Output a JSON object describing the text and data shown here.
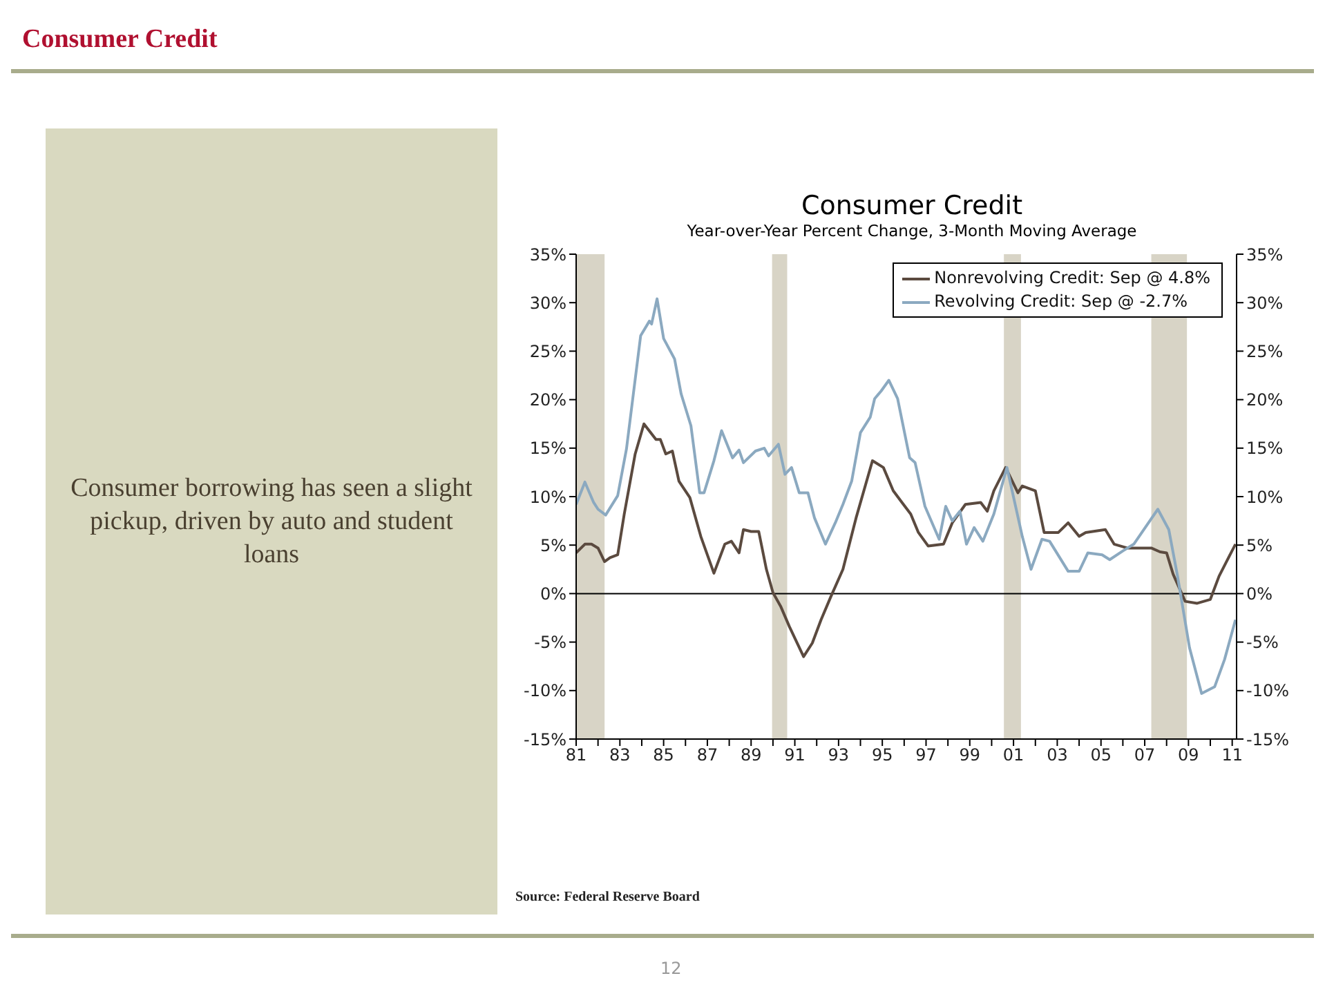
{
  "chart_data": {
    "type": "line",
    "title": "Consumer Credit",
    "subtitle": "Year-over-Year Percent Change, 3-Month Moving Average",
    "annotations": [
      "Consumer Credit",
      "Consumer borrowing has seen a slight pickup, driven by auto and student loans",
      "Source: Federal Reserve Board",
      "12"
    ],
    "series": [
      {
        "name": "Nonrevolving Credit: Sep @ 4.8%",
        "color": "#5b4a3f",
        "x": [
          1981.0,
          1981.4,
          1981.7,
          1982.0,
          1982.3,
          1982.55,
          1982.9,
          1983.2,
          1983.7,
          1984.1,
          1984.65,
          1984.85,
          1985.1,
          1985.4,
          1985.7,
          1986.2,
          1986.7,
          1987.3,
          1987.8,
          1988.1,
          1988.45,
          1988.65,
          1989.0,
          1989.35,
          1989.7,
          1990.0,
          1990.35,
          1990.75,
          1991.4,
          1991.8,
          1992.2,
          1992.65,
          1993.2,
          1993.8,
          1994.55,
          1995.05,
          1995.5,
          1995.9,
          1996.3,
          1996.65,
          1997.1,
          1997.8,
          1998.2,
          1998.8,
          1999.5,
          1999.8,
          2000.1,
          2000.64,
          2001.2,
          2001.4,
          2002.0,
          2002.4,
          2003.05,
          2003.5,
          2004.0,
          2004.3,
          2005.2,
          2005.6,
          2006.2,
          2007.3,
          2007.7,
          2008.0,
          2008.3,
          2008.85,
          2009.4,
          2010.0,
          2010.4,
          2011.15
        ],
        "values": [
          4.2,
          5.1,
          5.1,
          4.7,
          3.3,
          3.7,
          4.0,
          8.2,
          14.4,
          17.5,
          15.9,
          15.9,
          14.4,
          14.7,
          11.6,
          9.9,
          5.9,
          2.1,
          5.1,
          5.4,
          4.2,
          6.6,
          6.4,
          6.4,
          2.5,
          0.1,
          -1.3,
          -3.4,
          -6.5,
          -5.1,
          -2.7,
          -0.3,
          2.5,
          7.8,
          13.7,
          13.0,
          10.6,
          9.4,
          8.2,
          6.3,
          4.9,
          5.1,
          7.3,
          9.2,
          9.4,
          8.5,
          10.6,
          13.0,
          10.4,
          11.1,
          10.6,
          6.3,
          6.3,
          7.3,
          5.9,
          6.3,
          6.6,
          5.1,
          4.7,
          4.7,
          4.3,
          4.2,
          2.0,
          -0.8,
          -1.0,
          -0.6,
          1.8,
          5.1
        ]
      },
      {
        "name": "Revolving Credit: Sep @ -2.7%",
        "color": "#8ba9c0",
        "x": [
          1981.0,
          1981.4,
          1981.8,
          1982.0,
          1982.35,
          1982.9,
          1983.3,
          1983.95,
          1984.35,
          1984.45,
          1984.7,
          1985.0,
          1985.5,
          1985.8,
          1986.25,
          1986.65,
          1986.85,
          1987.3,
          1987.65,
          1988.15,
          1988.45,
          1988.65,
          1989.2,
          1989.6,
          1989.8,
          1990.25,
          1990.55,
          1990.85,
          1991.2,
          1991.6,
          1991.9,
          1992.4,
          1992.85,
          1993.2,
          1993.6,
          1994.0,
          1994.45,
          1994.65,
          1994.95,
          1995.3,
          1995.7,
          1996.25,
          1996.5,
          1996.95,
          1997.6,
          1997.9,
          1998.2,
          1998.55,
          1998.85,
          1999.2,
          1999.6,
          2000.1,
          2000.7,
          2001.4,
          2001.8,
          2002.3,
          2002.65,
          2003.5,
          2004.0,
          2004.4,
          2005.05,
          2005.4,
          2006.0,
          2006.5,
          2007.6,
          2008.1,
          2008.5,
          2009.05,
          2009.6,
          2010.2,
          2010.65,
          2011.15
        ],
        "values": [
          9.2,
          11.5,
          9.4,
          8.7,
          8.1,
          10.1,
          14.9,
          26.6,
          28.1,
          27.8,
          30.4,
          26.3,
          24.2,
          20.6,
          17.3,
          10.4,
          10.4,
          13.7,
          16.8,
          14.0,
          14.8,
          13.5,
          14.7,
          15.0,
          14.2,
          15.4,
          12.3,
          13.0,
          10.4,
          10.4,
          7.8,
          5.1,
          7.3,
          9.2,
          11.6,
          16.6,
          18.2,
          20.1,
          20.9,
          22.0,
          20.1,
          14.0,
          13.5,
          9.0,
          5.6,
          9.0,
          7.5,
          8.5,
          5.1,
          6.8,
          5.4,
          8.2,
          13.0,
          5.9,
          2.5,
          5.6,
          5.4,
          2.3,
          2.3,
          4.2,
          4.0,
          3.5,
          4.4,
          5.1,
          8.7,
          6.6,
          1.8,
          -5.6,
          -10.3,
          -9.6,
          -6.8,
          -2.7
        ]
      }
    ],
    "xlim": [
      1981,
      2011.2
    ],
    "xticks": [
      {
        "value": 1981,
        "label": "81"
      },
      {
        "value": 1982,
        "label": null
      },
      {
        "value": 1983,
        "label": "83"
      },
      {
        "value": 1984,
        "label": null
      },
      {
        "value": 1985,
        "label": "85"
      },
      {
        "value": 1986,
        "label": null
      },
      {
        "value": 1987,
        "label": "87"
      },
      {
        "value": 1988,
        "label": null
      },
      {
        "value": 1989,
        "label": "89"
      },
      {
        "value": 1990,
        "label": null
      },
      {
        "value": 1991,
        "label": "91"
      },
      {
        "value": 1992,
        "label": null
      },
      {
        "value": 1993,
        "label": "93"
      },
      {
        "value": 1994,
        "label": null
      },
      {
        "value": 1995,
        "label": "95"
      },
      {
        "value": 1996,
        "label": null
      },
      {
        "value": 1997,
        "label": "97"
      },
      {
        "value": 1998,
        "label": null
      },
      {
        "value": 1999,
        "label": "99"
      },
      {
        "value": 2000,
        "label": null
      },
      {
        "value": 2001,
        "label": "01"
      },
      {
        "value": 2002,
        "label": null
      },
      {
        "value": 2003,
        "label": "03"
      },
      {
        "value": 2004,
        "label": null
      },
      {
        "value": 2005,
        "label": "05"
      },
      {
        "value": 2006,
        "label": null
      },
      {
        "value": 2007,
        "label": "07"
      },
      {
        "value": 2008,
        "label": null
      },
      {
        "value": 2009,
        "label": "09"
      },
      {
        "value": 2010,
        "label": null
      },
      {
        "value": 2011,
        "label": "11"
      }
    ],
    "ylim": [
      -15,
      35
    ],
    "yticks": [
      {
        "value": 35,
        "label": "35%"
      },
      {
        "value": 30,
        "label": "30%"
      },
      {
        "value": 25,
        "label": "25%"
      },
      {
        "value": 20,
        "label": "20%"
      },
      {
        "value": 15,
        "label": "15%"
      },
      {
        "value": 10,
        "label": "10%"
      },
      {
        "value": 5,
        "label": "5%"
      },
      {
        "value": 0,
        "label": "0%"
      },
      {
        "value": -5,
        "label": "-5%"
      },
      {
        "value": -10,
        "label": "-10%"
      },
      {
        "value": -15,
        "label": "-15%"
      }
    ],
    "y2lim": [
      -15,
      35
    ],
    "y2ticks": [
      {
        "value": 35,
        "label": "35%"
      },
      {
        "value": 30,
        "label": "30%"
      },
      {
        "value": 25,
        "label": "25%"
      },
      {
        "value": 20,
        "label": "20%"
      },
      {
        "value": 15,
        "label": "15%"
      },
      {
        "value": 10,
        "label": "10%"
      },
      {
        "value": 5,
        "label": "5%"
      },
      {
        "value": 0,
        "label": "0%"
      },
      {
        "value": -5,
        "label": "-5%"
      },
      {
        "value": -10,
        "label": "-10%"
      },
      {
        "value": -15,
        "label": "-15%"
      }
    ],
    "ref_lines": [
      {
        "axis": "y",
        "value": 0,
        "color": "#000000"
      }
    ],
    "bands": [
      {
        "axis": "x",
        "from": 1981.0,
        "to": 1982.3,
        "color": "#d8d4c6"
      },
      {
        "axis": "x",
        "from": 1989.96,
        "to": 1990.65,
        "color": "#d8d4c6"
      },
      {
        "axis": "x",
        "from": 2000.56,
        "to": 2001.34,
        "color": "#d8d4c6"
      },
      {
        "axis": "x",
        "from": 2007.3,
        "to": 2008.93,
        "color": "#d8d4c6"
      }
    ],
    "grid": false,
    "legend": "top right",
    "marker": "none",
    "line_style": "solid"
  }
}
